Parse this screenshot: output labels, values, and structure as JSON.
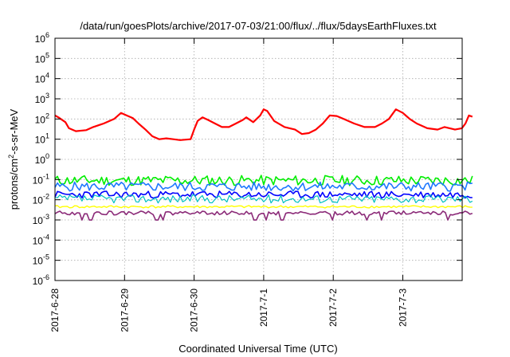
{
  "chart_data": {
    "type": "line",
    "title": "/data/run/goesPlots/archive/2017-07-03/21:00/flux/../flux/5daysEarthFluxes.txt",
    "xlabel": "Coordinated Universal Time (UTC)",
    "ylabel_parts": [
      "protons/cm",
      "2",
      "-s-sr-MeV"
    ],
    "y_scale": "log",
    "ylim_exp": [
      -6,
      6
    ],
    "ytick_exponents": [
      6,
      5,
      4,
      3,
      2,
      1,
      0,
      -1,
      -2,
      -3,
      -4,
      -5,
      -6
    ],
    "ytick_base": "10",
    "x_ticks": [
      "2017-6-28",
      "2017-6-29",
      "2017-6-30",
      "2017-7-1",
      "2017-7-2",
      "2017-7-3"
    ],
    "x_range_days": [
      0,
      6
    ],
    "grid": true,
    "series": [
      {
        "color": "#ff0000",
        "width": 2.2,
        "points": [
          [
            0.0,
            150
          ],
          [
            0.05,
            120
          ],
          [
            0.15,
            70
          ],
          [
            0.2,
            35
          ],
          [
            0.3,
            25
          ],
          [
            0.45,
            28
          ],
          [
            0.55,
            40
          ],
          [
            0.7,
            60
          ],
          [
            0.85,
            100
          ],
          [
            0.95,
            200
          ],
          [
            1.05,
            140
          ],
          [
            1.12,
            110
          ],
          [
            1.2,
            60
          ],
          [
            1.3,
            30
          ],
          [
            1.4,
            14
          ],
          [
            1.5,
            10
          ],
          [
            1.6,
            11
          ],
          [
            1.7,
            10
          ],
          [
            1.8,
            9
          ],
          [
            1.95,
            10
          ],
          [
            2.0,
            30
          ],
          [
            2.05,
            80
          ],
          [
            2.12,
            120
          ],
          [
            2.2,
            90
          ],
          [
            2.3,
            60
          ],
          [
            2.4,
            40
          ],
          [
            2.5,
            40
          ],
          [
            2.6,
            60
          ],
          [
            2.7,
            90
          ],
          [
            2.75,
            120
          ],
          [
            2.85,
            70
          ],
          [
            2.95,
            150
          ],
          [
            3.0,
            300
          ],
          [
            3.05,
            250
          ],
          [
            3.15,
            80
          ],
          [
            3.3,
            40
          ],
          [
            3.45,
            30
          ],
          [
            3.55,
            18
          ],
          [
            3.65,
            20
          ],
          [
            3.75,
            30
          ],
          [
            3.85,
            60
          ],
          [
            3.95,
            150
          ],
          [
            4.05,
            140
          ],
          [
            4.15,
            100
          ],
          [
            4.3,
            60
          ],
          [
            4.45,
            40
          ],
          [
            4.6,
            40
          ],
          [
            4.7,
            60
          ],
          [
            4.8,
            100
          ],
          [
            4.9,
            300
          ],
          [
            5.0,
            200
          ],
          [
            5.1,
            100
          ],
          [
            5.2,
            60
          ],
          [
            5.35,
            35
          ],
          [
            5.5,
            30
          ],
          [
            5.6,
            40
          ],
          [
            5.75,
            30
          ],
          [
            5.85,
            35
          ],
          [
            5.9,
            60
          ],
          [
            5.95,
            150
          ],
          [
            6.0,
            130
          ]
        ]
      },
      {
        "color": "#00ee00",
        "width": 1.6,
        "level": 0.09,
        "jitter": 1.8,
        "seed": 11
      },
      {
        "color": "#0000ff",
        "width": 1.6,
        "level": 0.018,
        "jitter": 1.5,
        "seed": 23
      },
      {
        "color": "#00c0c0",
        "width": 1.2,
        "level": 0.011,
        "jitter": 1.6,
        "seed": 37
      },
      {
        "color": "#1e78ff",
        "width": 1.6,
        "level": 0.045,
        "jitter": 1.7,
        "seed": 5
      },
      {
        "color": "#ffff00",
        "width": 1.4,
        "level": 0.0045,
        "jitter": 1.15,
        "seed": 41
      },
      {
        "color": "#8b2a78",
        "width": 1.6,
        "level": 0.0022,
        "jitter": 1.25,
        "seed": 53,
        "dips": true
      }
    ]
  }
}
